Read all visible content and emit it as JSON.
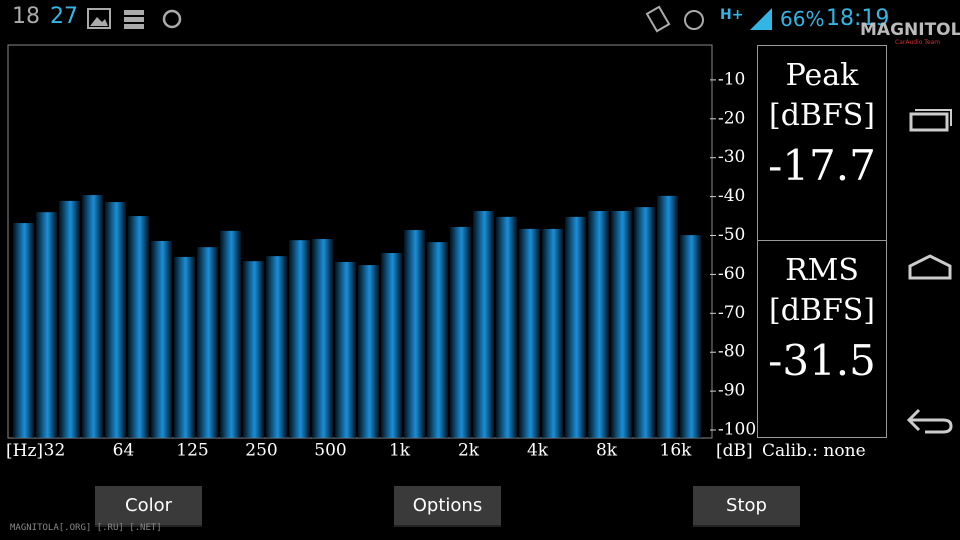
{
  "status_bar": {
    "hour_text": "18",
    "date_text": "27",
    "battery": "66%",
    "time": "18:19",
    "watermark": "MAGNITOLA",
    "watermark_sub": "CarAudio Team"
  },
  "chart_data": {
    "type": "bar",
    "color": "#1a8fd8",
    "categories": [
      null,
      "32",
      null,
      null,
      "64",
      null,
      null,
      "125",
      null,
      null,
      "250",
      null,
      null,
      "500",
      null,
      null,
      "1k",
      null,
      null,
      "2k",
      null,
      null,
      "4k",
      null,
      null,
      "8k",
      null,
      null,
      "16k",
      null
    ],
    "values": [
      -46.8,
      -44.0,
      -41.1,
      -39.6,
      -41.4,
      -45.0,
      -51.4,
      -55.5,
      -53.0,
      -48.8,
      -56.6,
      -55.3,
      -51.2,
      -50.9,
      -56.8,
      -57.6,
      -54.5,
      -48.6,
      -51.7,
      -47.8,
      -43.7,
      -45.2,
      -48.3,
      -48.3,
      -45.2,
      -43.7,
      -43.7,
      -42.7,
      -39.8,
      -49.9
    ],
    "ylim": [
      -102,
      0
    ],
    "yticks": [
      -10,
      -20,
      -30,
      -40,
      -50,
      -60,
      -70,
      -80,
      -90,
      -100
    ],
    "x_unit": "[Hz]",
    "y_unit": "[dB]"
  },
  "calibration": "Calib.: none",
  "peak": {
    "label": "Peak",
    "unit": "[dBFS]",
    "value": -17.7
  },
  "rms": {
    "label": "RMS",
    "unit": "[dBFS]",
    "value": -31.5
  },
  "buttons": [
    "Color",
    "Options",
    "Stop"
  ],
  "footer": "MAGNITOLA[.ORG] [.RU] [.NET]"
}
